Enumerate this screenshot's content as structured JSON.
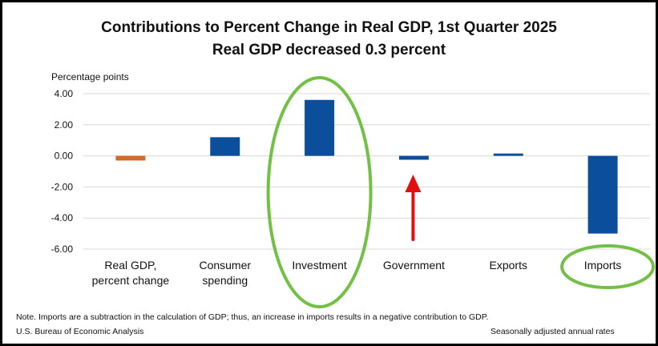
{
  "titles": {
    "main": "Contributions to Percent Change in Real GDP, 1st Quarter 2025",
    "sub": "Real GDP decreased 0.3 percent"
  },
  "footer": {
    "note": "Note. Imports are a subtraction in the calculation of GDP; thus, an increase in imports results in a negative contribution to GDP.",
    "source": "U.S. Bureau of Economic Analysis",
    "rates": "Seasonally adjusted annual rates"
  },
  "chart_data": {
    "type": "bar",
    "title": "Contributions to Percent Change in Real GDP, 1st Quarter 2025",
    "subtitle": "Real GDP decreased 0.3 percent",
    "ylabel": "Percentage points",
    "categories": [
      [
        "Real GDP,",
        "percent change"
      ],
      [
        "Consumer",
        "spending"
      ],
      [
        "Investment"
      ],
      [
        "Government"
      ],
      [
        "Exports"
      ],
      [
        "Imports"
      ]
    ],
    "values": [
      -0.3,
      1.2,
      3.6,
      -0.25,
      0.15,
      -5.0
    ],
    "bar_colors": [
      "#d4692b",
      "#0b4f9c",
      "#0b4f9c",
      "#0b4f9c",
      "#0b4f9c",
      "#0b4f9c"
    ],
    "ylim": [
      -6,
      4
    ],
    "yticks": [
      "4.00",
      "2.00",
      "0.00",
      "-2.00",
      "-4.00",
      "-6.00"
    ],
    "grid": true,
    "annotations": [
      {
        "type": "ellipse",
        "target": "Investment",
        "color": "#72c045"
      },
      {
        "type": "ellipse",
        "target": "Imports",
        "color": "#72c045"
      },
      {
        "type": "arrow",
        "target": "Government",
        "color": "#e01010"
      }
    ]
  }
}
